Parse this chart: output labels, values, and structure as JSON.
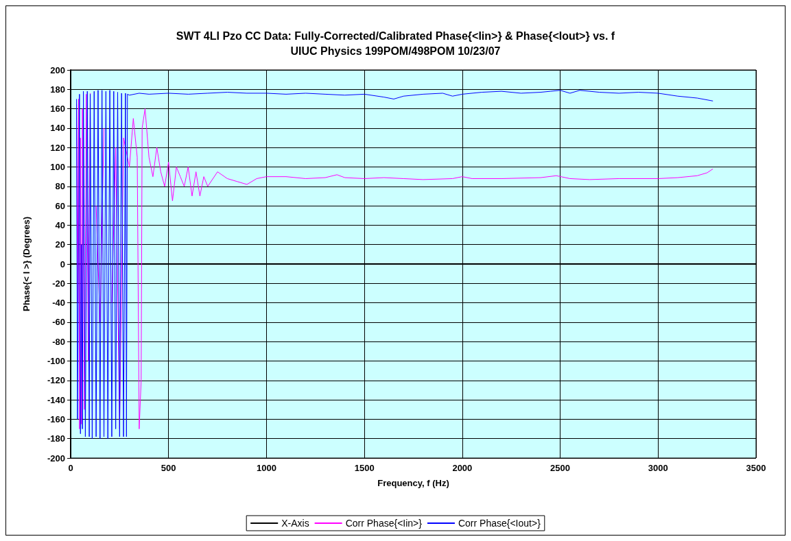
{
  "chart_data": {
    "type": "line",
    "title": "SWT 4LI Pzo CC Data: Fully-Corrected/Calibrated Phase{<Iin>} & Phase{<Iout>} vs. f",
    "subtitle": "UIUC Physics 199POM/498POM 10/23/07",
    "xlabel": "Frequency, f (Hz)",
    "ylabel": "Phase{< I >} (Degrees)",
    "xlim": [
      0,
      3500
    ],
    "xticks": [
      0,
      500,
      1000,
      1500,
      2000,
      2500,
      3000,
      3500
    ],
    "ylim": [
      -200,
      200
    ],
    "yticks": [
      -200,
      -180,
      -160,
      -140,
      -120,
      -100,
      -80,
      -60,
      -40,
      -20,
      0,
      20,
      40,
      60,
      80,
      100,
      120,
      140,
      160,
      180,
      200
    ],
    "grid": true,
    "legend": "bottom",
    "marker": "none",
    "line_style": "solid",
    "series": [
      {
        "name": "X-Axis",
        "color": "#000000",
        "x": [
          0,
          3500
        ],
        "values": [
          0,
          0
        ]
      },
      {
        "name": "Corr Phase{<Iin>}",
        "color": "#ff00ff",
        "x": [
          30,
          35,
          40,
          45,
          50,
          55,
          60,
          70,
          80,
          90,
          100,
          110,
          130,
          150,
          170,
          190,
          200,
          210,
          230,
          250,
          270,
          300,
          320,
          340,
          350,
          360,
          365,
          380,
          400,
          420,
          440,
          460,
          480,
          500,
          520,
          540,
          560,
          580,
          600,
          620,
          640,
          660,
          680,
          700,
          750,
          800,
          850,
          900,
          950,
          1000,
          1100,
          1200,
          1300,
          1360,
          1400,
          1500,
          1600,
          1700,
          1800,
          1950,
          2000,
          2050,
          2200,
          2400,
          2480,
          2550,
          2650,
          2800,
          3000,
          3100,
          3200,
          3250,
          3280
        ],
        "values": [
          165,
          -40,
          170,
          -170,
          130,
          -165,
          160,
          -150,
          175,
          -100,
          176,
          null,
          60,
          -60,
          140,
          null,
          null,
          -40,
          120,
          -170,
          130,
          100,
          150,
          110,
          -170,
          -120,
          140,
          160,
          110,
          90,
          120,
          95,
          80,
          105,
          65,
          100,
          90,
          80,
          100,
          70,
          95,
          70,
          90,
          80,
          95,
          88,
          85,
          82,
          88,
          90,
          90,
          88,
          89,
          92,
          89,
          88,
          89,
          88,
          87,
          88,
          90,
          88,
          88,
          89,
          91,
          88,
          87,
          88,
          88,
          89,
          91,
          94,
          98
        ]
      },
      {
        "name": "Corr Phase{<Iout>}",
        "color": "#0000ff",
        "x": [
          30,
          35,
          45,
          50,
          55,
          60,
          65,
          75,
          85,
          95,
          100,
          110,
          120,
          130,
          140,
          150,
          160,
          170,
          180,
          190,
          200,
          210,
          220,
          230,
          240,
          250,
          260,
          270,
          280,
          285,
          290,
          300,
          350,
          400,
          500,
          600,
          700,
          800,
          900,
          1000,
          1100,
          1200,
          1300,
          1400,
          1500,
          1600,
          1650,
          1700,
          1800,
          1900,
          1950,
          2000,
          2100,
          2200,
          2300,
          2400,
          2450,
          2500,
          2550,
          2600,
          2700,
          2800,
          2900,
          3000,
          3100,
          3200,
          3280
        ],
        "values": [
          170,
          -160,
          175,
          -175,
          20,
          -170,
          178,
          -178,
          178,
          -178,
          175,
          -180,
          178,
          -178,
          179,
          -180,
          179,
          -178,
          178,
          -180,
          179,
          -178,
          178,
          -170,
          177,
          -178,
          176,
          -178,
          176,
          -178,
          175,
          174,
          176,
          175,
          176,
          175,
          176,
          177,
          176,
          176,
          175,
          176,
          175,
          174,
          175,
          172,
          170,
          173,
          175,
          176,
          173,
          175,
          177,
          178,
          176,
          177,
          178,
          179,
          176,
          179,
          177,
          176,
          177,
          176,
          173,
          171,
          168
        ]
      }
    ]
  }
}
